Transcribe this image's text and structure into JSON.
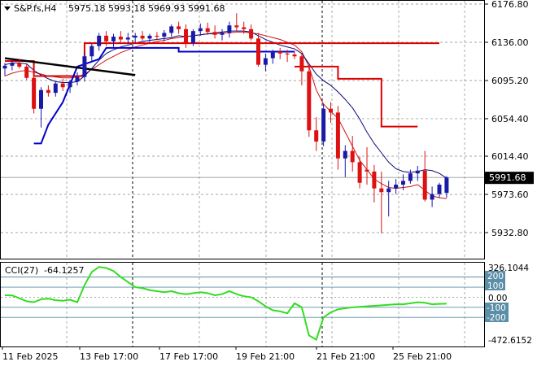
{
  "header": {
    "symbol": "S&P.fs,H4",
    "ohlc": "5975.18 5993.18 5969.93 5991.68"
  },
  "cci": {
    "label": "CCI(27)",
    "value": "-64.1257",
    "max_label": "326.1044",
    "min_label": "-472.6152",
    "levels": [
      "200",
      "100",
      "0.00",
      "-100",
      "-200"
    ]
  },
  "current_price_label": "5991.68",
  "colors": {
    "bull": "#1a1aa8",
    "bear": "#dd1111",
    "ma_fast": "#0a0a78",
    "ma_slow": "#cc1111",
    "step_red": "#dd0000",
    "step_blue": "#0000cc",
    "trend": "#000000",
    "cci_line": "#33dd22",
    "cci_level": "#5b8fa8",
    "grid": "#888888"
  },
  "chart_data": {
    "type": "candlestick",
    "price_range": [
      5905.0,
      6176.8
    ],
    "y_ticks": [
      "6176.80",
      "6136.00",
      "6095.20",
      "6054.40",
      "6014.40",
      "5973.60",
      "5932.80"
    ],
    "x_labels": [
      "11 Feb 2025",
      "13 Feb 17:00",
      "17 Feb 17:00",
      "19 Feb 21:00",
      "21 Feb 21:00",
      "25 Feb 21:00"
    ],
    "candles": [
      [
        6108,
        6114,
        6100,
        6111
      ],
      [
        6111,
        6118,
        6106,
        6114
      ],
      [
        6114,
        6118,
        6108,
        6110
      ],
      [
        6110,
        6113,
        6096,
        6098
      ],
      [
        6098,
        6102,
        6060,
        6065
      ],
      [
        6065,
        6088,
        6045,
        6085
      ],
      [
        6085,
        6090,
        6078,
        6082
      ],
      [
        6082,
        6094,
        6078,
        6092
      ],
      [
        6092,
        6097,
        6084,
        6088
      ],
      [
        6088,
        6096,
        6082,
        6094
      ],
      [
        6094,
        6104,
        6090,
        6099
      ],
      [
        6099,
        6125,
        6094,
        6121
      ],
      [
        6121,
        6135,
        6115,
        6132
      ],
      [
        6132,
        6146,
        6127,
        6143
      ],
      [
        6143,
        6148,
        6132,
        6137
      ],
      [
        6137,
        6145,
        6131,
        6142
      ],
      [
        6142,
        6148,
        6136,
        6139
      ],
      [
        6139,
        6146,
        6134,
        6141
      ],
      [
        6141,
        6146,
        6135,
        6143
      ],
      [
        6143,
        6148,
        6138,
        6140
      ],
      [
        6140,
        6145,
        6136,
        6143
      ],
      [
        6143,
        6147,
        6139,
        6142
      ],
      [
        6142,
        6149,
        6137,
        6146
      ],
      [
        6146,
        6155,
        6142,
        6153
      ],
      [
        6153,
        6158,
        6145,
        6150
      ],
      [
        6150,
        6155,
        6130,
        6135
      ],
      [
        6135,
        6150,
        6132,
        6148
      ],
      [
        6148,
        6156,
        6143,
        6151
      ],
      [
        6151,
        6157,
        6144,
        6147
      ],
      [
        6147,
        6154,
        6140,
        6144
      ],
      [
        6144,
        6150,
        6138,
        6146
      ],
      [
        6146,
        6158,
        6141,
        6154
      ],
      [
        6154,
        6167,
        6148,
        6152
      ],
      [
        6152,
        6158,
        6145,
        6150
      ],
      [
        6150,
        6155,
        6138,
        6140
      ],
      [
        6140,
        6146,
        6110,
        6112
      ],
      [
        6112,
        6124,
        6105,
        6119
      ],
      [
        6119,
        6128,
        6113,
        6126
      ],
      [
        6126,
        6130,
        6118,
        6124
      ],
      [
        6124,
        6128,
        6115,
        6123
      ],
      [
        6123,
        6127,
        6118,
        6121
      ],
      [
        6121,
        6124,
        6090,
        6105
      ],
      [
        6105,
        6112,
        6035,
        6042
      ],
      [
        6042,
        6056,
        6020,
        6030
      ],
      [
        6030,
        6070,
        6025,
        6065
      ],
      [
        6065,
        6072,
        6050,
        6061
      ],
      [
        6061,
        6068,
        6000,
        6012
      ],
      [
        6012,
        6026,
        5992,
        6020
      ],
      [
        6020,
        6036,
        5998,
        6008
      ],
      [
        6008,
        6014,
        5980,
        5986
      ],
      [
        6000,
        6024,
        5984,
        5998
      ],
      [
        5998,
        6005,
        5965,
        5980
      ],
      [
        5980,
        5998,
        5932,
        5976
      ],
      [
        5976,
        5988,
        5950,
        5980
      ],
      [
        5980,
        5990,
        5974,
        5984
      ],
      [
        5984,
        5995,
        5978,
        5988
      ],
      [
        5988,
        6000,
        5985,
        5996
      ],
      [
        5996,
        6004,
        5988,
        5999
      ],
      [
        5999,
        6020,
        5966,
        5968
      ],
      [
        5968,
        5982,
        5960,
        5974
      ],
      [
        5974,
        5986,
        5970,
        5984
      ],
      [
        5975.18,
        5993.18,
        5969.93,
        5991.68
      ]
    ],
    "ma_fast_series": [
      6112,
      6114,
      6114,
      6113,
      6106,
      6101,
      6097,
      6094,
      6093,
      6093,
      6094,
      6100,
      6108,
      6117,
      6124,
      6128,
      6131,
      6133,
      6135,
      6137,
      6138,
      6139,
      6140,
      6141,
      6143,
      6142,
      6143,
      6144,
      6145,
      6146,
      6147,
      6148,
      6148,
      6148,
      6147,
      6143,
      6139,
      6136,
      6133,
      6131,
      6129,
      6124,
      6113,
      6102,
      6095,
      6090,
      6083,
      6075,
      6066,
      6054,
      6040,
      6028,
      6018,
      6008,
      6001,
      5998,
      5997,
      5998,
      6000,
      5999,
      5996,
      5991
    ],
    "ma_slow_series": [
      6100,
      6103,
      6105,
      6106,
      6104,
      6102,
      6100,
      6099,
      6098,
      6098,
      6099,
      6102,
      6107,
      6112,
      6117,
      6121,
      6125,
      6128,
      6131,
      6133,
      6135,
      6137,
      6138,
      6140,
      6141,
      6142,
      6143,
      6144,
      6145,
      6145,
      6146,
      6146,
      6147,
      6147,
      6146,
      6145,
      6143,
      6141,
      6139,
      6136,
      6133,
      6126,
      6110,
      6085,
      6070,
      6062,
      6055,
      6040,
      6025,
      6010,
      6000,
      5990,
      5985,
      5981,
      5980,
      5981,
      5982,
      5984,
      5978,
      5972,
      5970,
      5969
    ],
    "step_red": [
      [
        0,
        6116
      ],
      [
        4,
        6116
      ],
      [
        4,
        6100
      ],
      [
        11,
        6100
      ],
      [
        11,
        6135
      ],
      [
        60,
        6135
      ]
    ],
    "step_blue": [
      [
        4,
        6028
      ],
      [
        5,
        6028
      ],
      [
        6,
        6048
      ],
      [
        8,
        6072
      ],
      [
        10,
        6110
      ],
      [
        13,
        6118
      ],
      [
        14,
        6130
      ],
      [
        24,
        6130
      ],
      [
        24,
        6126
      ],
      [
        40,
        6126
      ]
    ],
    "step_red2": [
      [
        40,
        6110
      ],
      [
        46,
        6110
      ],
      [
        46,
        6097
      ],
      [
        52,
        6097
      ],
      [
        52,
        6046
      ],
      [
        57,
        6046
      ]
    ],
    "trend_line": [
      [
        0,
        6119
      ],
      [
        18,
        6101
      ]
    ],
    "cci_series": [
      20,
      18,
      -10,
      -40,
      -50,
      -20,
      -15,
      -30,
      -35,
      -25,
      -50,
      120,
      250,
      300,
      290,
      260,
      200,
      150,
      100,
      90,
      70,
      60,
      50,
      60,
      40,
      30,
      40,
      50,
      40,
      20,
      30,
      60,
      30,
      10,
      0,
      -40,
      -90,
      -130,
      -140,
      -160,
      -60,
      -100,
      -380,
      -420,
      -200,
      -150,
      -120,
      -110,
      -100,
      -95,
      -90,
      -85,
      -80,
      -75,
      -70,
      -70,
      -60,
      -50,
      -55,
      -70,
      -66,
      -64
    ],
    "cci_range": [
      -472.6152,
      326.1044
    ]
  }
}
